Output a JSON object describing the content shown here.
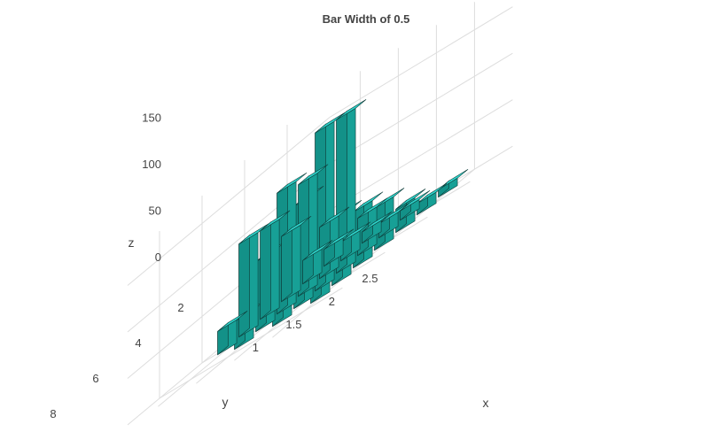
{
  "chart_data": {
    "type": "bar3d",
    "title": "Bar Width of 0.5",
    "xlabel": "x",
    "ylabel": "y",
    "zlabel": "z",
    "x_ticks": [
      "1",
      "1.5",
      "2",
      "2.5"
    ],
    "y_ticks": [
      "2",
      "4",
      "6",
      "8"
    ],
    "z_ticks": [
      "0",
      "50",
      "100",
      "150"
    ],
    "xlim": [
      0.6,
      3.0
    ],
    "ylim": [
      0,
      9.5
    ],
    "zlim": [
      0,
      180
    ],
    "bar_width": 0.5,
    "color": "#17a096",
    "bars": [
      {
        "x": 1.0,
        "y": 1,
        "z": 18
      },
      {
        "x": 1.0,
        "y": 2,
        "z": 25
      },
      {
        "x": 1.0,
        "y": 3,
        "z": 70
      },
      {
        "x": 1.0,
        "y": 4,
        "z": 95
      },
      {
        "x": 1.0,
        "y": 5,
        "z": 100
      },
      {
        "x": 1.0,
        "y": 6,
        "z": 25
      },
      {
        "x": 1.5,
        "y": 1,
        "z": 12
      },
      {
        "x": 1.5,
        "y": 2,
        "z": 20
      },
      {
        "x": 1.5,
        "y": 3,
        "z": 55
      },
      {
        "x": 1.5,
        "y": 4,
        "z": 120
      },
      {
        "x": 1.5,
        "y": 5,
        "z": 130
      },
      {
        "x": 1.5,
        "y": 6,
        "z": 75
      },
      {
        "x": 1.5,
        "y": 7,
        "z": 30
      },
      {
        "x": 2.0,
        "y": 1,
        "z": 10
      },
      {
        "x": 2.0,
        "y": 2,
        "z": 15
      },
      {
        "x": 2.0,
        "y": 3,
        "z": 40
      },
      {
        "x": 2.0,
        "y": 4,
        "z": 165
      },
      {
        "x": 2.0,
        "y": 5,
        "z": 170
      },
      {
        "x": 2.0,
        "y": 6,
        "z": 110
      },
      {
        "x": 2.0,
        "y": 7,
        "z": 50
      },
      {
        "x": 2.5,
        "y": 1,
        "z": 8
      },
      {
        "x": 2.5,
        "y": 2,
        "z": 12
      },
      {
        "x": 2.5,
        "y": 3,
        "z": 25
      },
      {
        "x": 2.5,
        "y": 4,
        "z": 45
      },
      {
        "x": 2.5,
        "y": 5,
        "z": 60
      },
      {
        "x": 2.5,
        "y": 6,
        "z": 70
      },
      {
        "x": 2.5,
        "y": 7,
        "z": 55
      }
    ]
  }
}
